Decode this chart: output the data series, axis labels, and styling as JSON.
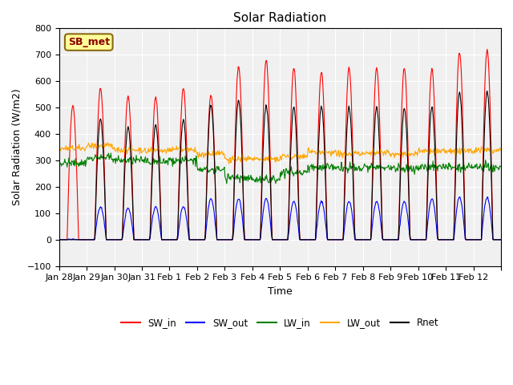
{
  "title": "Solar Radiation",
  "xlabel": "Time",
  "ylabel": "Solar Radiation (W/m2)",
  "ylim": [
    -100,
    800
  ],
  "yticks": [
    -100,
    0,
    100,
    200,
    300,
    400,
    500,
    600,
    700,
    800
  ],
  "xtick_labels": [
    "Jan 28",
    "Jan 29",
    "Jan 30",
    "Jan 31",
    "Feb 1",
    "Feb 2",
    "Feb 3",
    "Feb 4",
    "Feb 5",
    "Feb 6",
    "Feb 7",
    "Feb 8",
    "Feb 9",
    "Feb 10",
    "Feb 11",
    "Feb 12",
    ""
  ],
  "legend_labels": [
    "SW_in",
    "SW_out",
    "LW_in",
    "LW_out",
    "Rnet"
  ],
  "legend_colors": [
    "red",
    "blue",
    "green",
    "orange",
    "black"
  ],
  "SW_in_peaks": [
    510,
    575,
    545,
    540,
    575,
    550,
    655,
    680,
    650,
    635,
    650,
    650,
    650,
    645,
    710,
    720
  ],
  "SW_out_peaks": [
    0,
    125,
    120,
    125,
    125,
    155,
    155,
    155,
    145,
    145,
    145,
    145,
    145,
    155,
    160,
    160
  ],
  "LW_in_base": [
    290,
    310,
    300,
    295,
    300,
    265,
    235,
    230,
    255,
    275,
    270,
    275,
    270,
    275,
    275,
    275
  ],
  "LW_out_base": [
    345,
    355,
    340,
    335,
    340,
    325,
    305,
    305,
    315,
    330,
    325,
    330,
    325,
    335,
    335,
    340
  ],
  "Rnet_peaks": [
    0,
    455,
    425,
    435,
    455,
    510,
    530,
    510,
    500,
    505,
    500,
    500,
    495,
    500,
    555,
    560
  ],
  "annotation_text": "SB_met",
  "annotation_color": "#8B0000",
  "annotation_bg": "#FFFF99",
  "bg_color": "#f0f0f0"
}
